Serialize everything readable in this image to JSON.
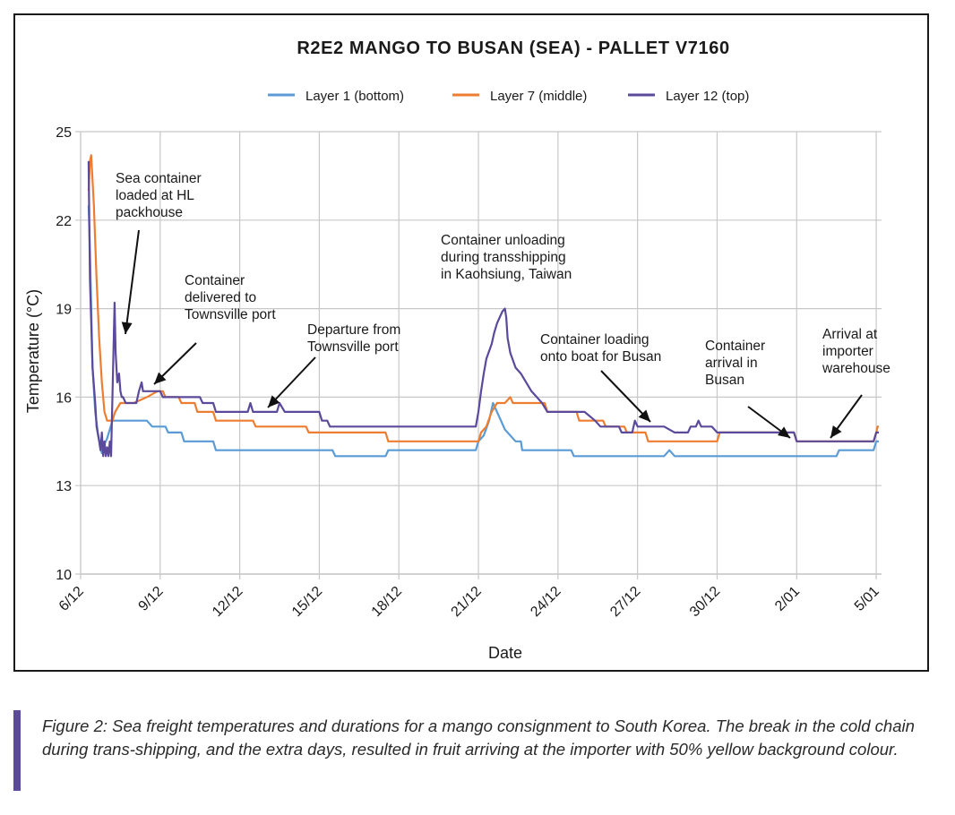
{
  "chart_data": {
    "type": "line",
    "title": "R2E2 MANGO TO BUSAN (SEA) - PALLET V7160",
    "xlabel": "Date",
    "ylabel": "Temperature (°C)",
    "ylim": [
      10,
      25
    ],
    "y_ticks": [
      10,
      13,
      16,
      19,
      22,
      25
    ],
    "x_start": "6/12",
    "x_unit": "days",
    "xlim": [
      "6/12",
      "7/01"
    ],
    "x_tick_labels": [
      "6/12",
      "9/12",
      "12/12",
      "15/12",
      "18/12",
      "21/12",
      "24/12",
      "27/12",
      "30/12",
      "2/01",
      "5/01"
    ],
    "grid": true,
    "legend_position": "top",
    "series": [
      {
        "name": "Layer 1 (bottom)",
        "color": "#5b9bd5",
        "points": [
          [
            6.3,
            22.5
          ],
          [
            6.35,
            21
          ],
          [
            6.45,
            17
          ],
          [
            6.55,
            15.5
          ],
          [
            6.65,
            14.8
          ],
          [
            6.75,
            14.3
          ],
          [
            6.8,
            14.1
          ],
          [
            6.9,
            14.4
          ],
          [
            7.0,
            14.6
          ],
          [
            7.2,
            15.2
          ],
          [
            8.0,
            15.2
          ],
          [
            8.5,
            15.2
          ],
          [
            8.7,
            15.0
          ],
          [
            9.2,
            15.0
          ],
          [
            9.3,
            14.8
          ],
          [
            9.8,
            14.8
          ],
          [
            9.9,
            14.5
          ],
          [
            11.0,
            14.5
          ],
          [
            11.1,
            14.2
          ],
          [
            13.0,
            14.2
          ],
          [
            14.0,
            14.2
          ],
          [
            15.5,
            14.2
          ],
          [
            15.6,
            14.0
          ],
          [
            17.5,
            14.0
          ],
          [
            17.6,
            14.2
          ],
          [
            20.0,
            14.2
          ],
          [
            20.9,
            14.2
          ],
          [
            21.0,
            14.5
          ],
          [
            21.2,
            14.7
          ],
          [
            21.4,
            15.2
          ],
          [
            21.55,
            15.8
          ],
          [
            21.7,
            15.5
          ],
          [
            21.85,
            15.2
          ],
          [
            22.0,
            14.9
          ],
          [
            22.2,
            14.7
          ],
          [
            22.4,
            14.5
          ],
          [
            22.6,
            14.5
          ],
          [
            22.65,
            14.2
          ],
          [
            23.8,
            14.2
          ],
          [
            24.5,
            14.2
          ],
          [
            24.6,
            14.0
          ],
          [
            28.0,
            14.0
          ],
          [
            28.2,
            14.2
          ],
          [
            28.4,
            14.0
          ],
          [
            31.0,
            14.0
          ],
          [
            34.5,
            14.0
          ],
          [
            34.6,
            14.2
          ],
          [
            35.9,
            14.2
          ],
          [
            36.0,
            14.5
          ],
          [
            36.1,
            14.5
          ]
        ]
      },
      {
        "name": "Layer 7 (middle)",
        "color": "#ed7d31",
        "points": [
          [
            6.3,
            23.0
          ],
          [
            6.35,
            24.0
          ],
          [
            6.4,
            24.2
          ],
          [
            6.5,
            22.5
          ],
          [
            6.6,
            20.0
          ],
          [
            6.7,
            18.0
          ],
          [
            6.8,
            16.5
          ],
          [
            6.9,
            15.5
          ],
          [
            7.0,
            15.2
          ],
          [
            7.2,
            15.2
          ],
          [
            7.3,
            15.5
          ],
          [
            7.5,
            15.8
          ],
          [
            8.0,
            15.8
          ],
          [
            8.5,
            16.0
          ],
          [
            8.9,
            16.2
          ],
          [
            9.1,
            16.2
          ],
          [
            9.2,
            16.0
          ],
          [
            9.7,
            16.0
          ],
          [
            9.8,
            15.8
          ],
          [
            10.3,
            15.8
          ],
          [
            10.4,
            15.5
          ],
          [
            11.0,
            15.5
          ],
          [
            11.1,
            15.2
          ],
          [
            12.5,
            15.2
          ],
          [
            12.6,
            15.0
          ],
          [
            14.5,
            15.0
          ],
          [
            14.6,
            14.8
          ],
          [
            17.5,
            14.8
          ],
          [
            17.6,
            14.5
          ],
          [
            20.0,
            14.5
          ],
          [
            21.0,
            14.5
          ],
          [
            21.1,
            14.8
          ],
          [
            21.3,
            15.0
          ],
          [
            21.5,
            15.5
          ],
          [
            21.7,
            15.8
          ],
          [
            22.0,
            15.8
          ],
          [
            22.2,
            16.0
          ],
          [
            22.3,
            15.8
          ],
          [
            23.0,
            15.8
          ],
          [
            23.5,
            15.8
          ],
          [
            23.6,
            15.5
          ],
          [
            24.7,
            15.5
          ],
          [
            24.8,
            15.2
          ],
          [
            25.7,
            15.2
          ],
          [
            25.8,
            15.0
          ],
          [
            26.5,
            15.0
          ],
          [
            26.6,
            14.8
          ],
          [
            27.3,
            14.8
          ],
          [
            27.4,
            14.5
          ],
          [
            30.0,
            14.5
          ],
          [
            30.1,
            14.8
          ],
          [
            32.9,
            14.8
          ],
          [
            33.0,
            14.5
          ],
          [
            35.9,
            14.5
          ],
          [
            36.0,
            14.8
          ],
          [
            36.05,
            15.0
          ],
          [
            36.1,
            15.0
          ]
        ]
      },
      {
        "name": "Layer 12 (top)",
        "color": "#5b4a9b",
        "points": [
          [
            6.3,
            24.0
          ],
          [
            6.35,
            20.0
          ],
          [
            6.45,
            17.0
          ],
          [
            6.55,
            15.8
          ],
          [
            6.6,
            15.0
          ],
          [
            6.7,
            14.5
          ],
          [
            6.75,
            14.2
          ],
          [
            6.8,
            14.8
          ],
          [
            6.85,
            14.0
          ],
          [
            6.9,
            14.5
          ],
          [
            6.95,
            14.0
          ],
          [
            7.0,
            14.3
          ],
          [
            7.05,
            14.0
          ],
          [
            7.1,
            14.5
          ],
          [
            7.15,
            14.0
          ],
          [
            7.2,
            16.0
          ],
          [
            7.28,
            19.2
          ],
          [
            7.32,
            17.5
          ],
          [
            7.38,
            16.5
          ],
          [
            7.45,
            16.8
          ],
          [
            7.5,
            16.2
          ],
          [
            7.55,
            16.0
          ],
          [
            7.6,
            16.0
          ],
          [
            7.7,
            15.8
          ],
          [
            8.1,
            15.8
          ],
          [
            8.2,
            16.2
          ],
          [
            8.3,
            16.5
          ],
          [
            8.35,
            16.2
          ],
          [
            9.0,
            16.2
          ],
          [
            9.1,
            16.0
          ],
          [
            10.5,
            16.0
          ],
          [
            10.6,
            15.8
          ],
          [
            11.0,
            15.8
          ],
          [
            11.1,
            15.5
          ],
          [
            12.3,
            15.5
          ],
          [
            12.4,
            15.8
          ],
          [
            12.5,
            15.5
          ],
          [
            13.4,
            15.5
          ],
          [
            13.5,
            15.8
          ],
          [
            13.7,
            15.5
          ],
          [
            15.0,
            15.5
          ],
          [
            15.1,
            15.2
          ],
          [
            15.3,
            15.2
          ],
          [
            15.4,
            15.0
          ],
          [
            17.0,
            15.0
          ],
          [
            20.0,
            15.0
          ],
          [
            20.9,
            15.0
          ],
          [
            21.0,
            15.5
          ],
          [
            21.1,
            16.2
          ],
          [
            21.2,
            16.8
          ],
          [
            21.3,
            17.3
          ],
          [
            21.5,
            17.8
          ],
          [
            21.6,
            18.2
          ],
          [
            21.7,
            18.5
          ],
          [
            21.8,
            18.7
          ],
          [
            21.9,
            18.9
          ],
          [
            22.0,
            19.0
          ],
          [
            22.05,
            18.7
          ],
          [
            22.1,
            18.0
          ],
          [
            22.2,
            17.5
          ],
          [
            22.4,
            17.0
          ],
          [
            22.6,
            16.8
          ],
          [
            22.8,
            16.5
          ],
          [
            23.0,
            16.2
          ],
          [
            23.2,
            16.0
          ],
          [
            23.4,
            15.8
          ],
          [
            23.6,
            15.5
          ],
          [
            24.0,
            15.5
          ],
          [
            24.3,
            15.5
          ],
          [
            25.0,
            15.5
          ],
          [
            25.4,
            15.2
          ],
          [
            25.6,
            15.0
          ],
          [
            26.3,
            15.0
          ],
          [
            26.4,
            14.8
          ],
          [
            26.8,
            14.8
          ],
          [
            26.9,
            15.2
          ],
          [
            27.0,
            15.0
          ],
          [
            27.5,
            15.0
          ],
          [
            28.0,
            15.0
          ],
          [
            28.4,
            14.8
          ],
          [
            28.9,
            14.8
          ],
          [
            29.0,
            15.0
          ],
          [
            29.2,
            15.0
          ],
          [
            29.3,
            15.2
          ],
          [
            29.4,
            15.0
          ],
          [
            29.8,
            15.0
          ],
          [
            30.0,
            14.8
          ],
          [
            32.0,
            14.8
          ],
          [
            32.9,
            14.8
          ],
          [
            33.0,
            14.5
          ],
          [
            35.9,
            14.5
          ],
          [
            36.0,
            14.8
          ],
          [
            36.1,
            14.8
          ]
        ]
      }
    ],
    "annotations": [
      {
        "text": [
          "Sea container",
          "loaded at HL",
          "packhouse"
        ]
      },
      {
        "text": [
          "Container",
          "delivered to",
          "Townsville port"
        ]
      },
      {
        "text": [
          "Departure from",
          "Townsville port"
        ]
      },
      {
        "text": [
          "Container unloading",
          "during transshipping",
          "in Kaohsiung, Taiwan"
        ]
      },
      {
        "text": [
          "Container loading",
          "onto boat for Busan"
        ]
      },
      {
        "text": [
          "Container",
          "arrival in",
          "Busan"
        ]
      },
      {
        "text": [
          "Arrival at",
          "importer",
          "warehouse"
        ]
      }
    ]
  },
  "caption": {
    "label": "Figure 2:",
    "text": " Sea freight temperatures and durations for a mango consignment to South Korea. The break in the cold chain during trans-shipping, and the extra days, resulted in fruit arriving at the importer with 50% yellow background colour."
  }
}
